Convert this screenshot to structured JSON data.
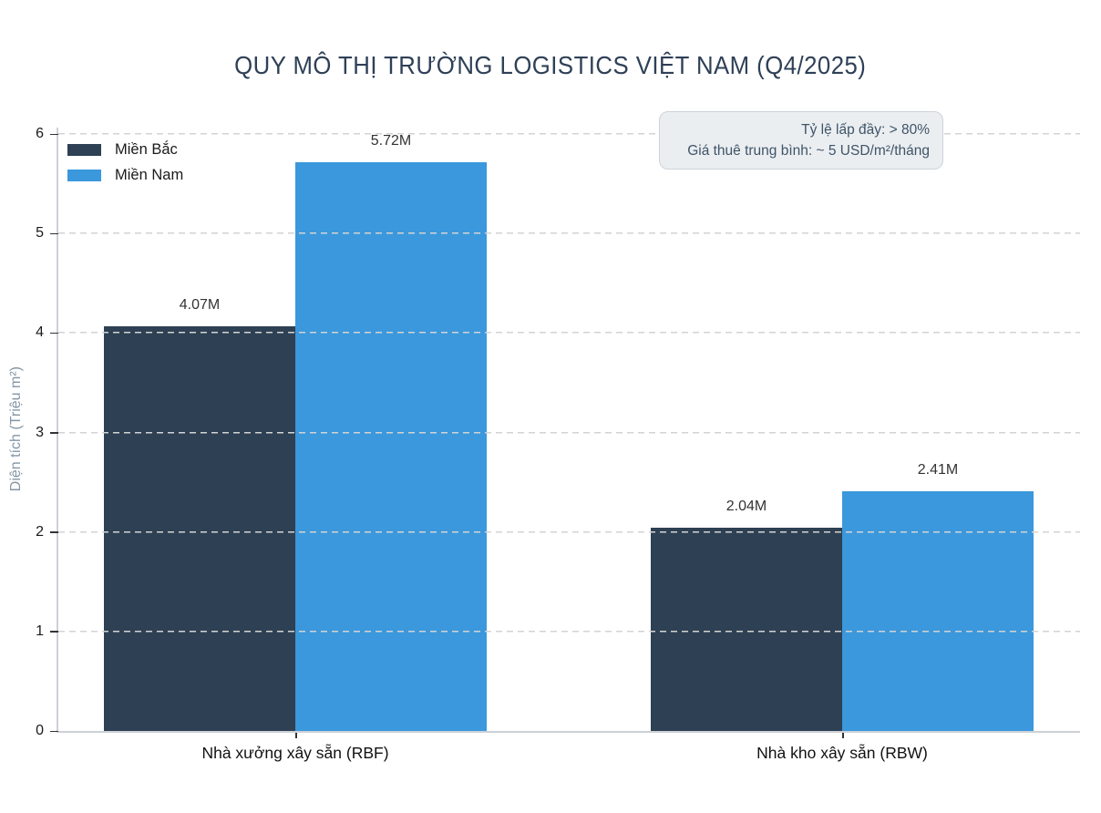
{
  "title": "QUY MÔ THỊ TRƯỜNG LOGISTICS VIỆT NAM (Q4/2025)",
  "annotation": {
    "line1": "Tỷ lệ lấp đầy: > 80%",
    "line2": "Giá thuê trung bình: ~ 5 USD/m²/tháng"
  },
  "chart_data": {
    "type": "bar",
    "title": "QUY MÔ THỊ TRƯỜNG LOGISTICS VIỆT NAM (Q4/2025)",
    "categories": [
      "Nhà xưởng xây sẵn (RBF)",
      "Nhà kho xây sẵn (RBW)"
    ],
    "series": [
      {
        "name": "Miền Bắc",
        "color": "#2e4053",
        "values": [
          4.07,
          2.04
        ],
        "labels": [
          "4.07M",
          "2.04M"
        ]
      },
      {
        "name": "Miền Nam",
        "color": "#3b98dc",
        "values": [
          5.72,
          2.41
        ],
        "labels": [
          "5.72M",
          "2.41M"
        ]
      }
    ],
    "ylabel": "Diện tích (Triệu m²)",
    "ylim": [
      0,
      6
    ],
    "yticks": [
      0,
      1,
      2,
      3,
      4,
      5,
      6
    ],
    "grid": "horizontal dashed, drawn above bars",
    "legend_position": "upper left",
    "annotation": "Tỷ lệ lấp đầy: > 80%\nGiá thuê trung bình: ~ 5 USD/m²/tháng"
  }
}
